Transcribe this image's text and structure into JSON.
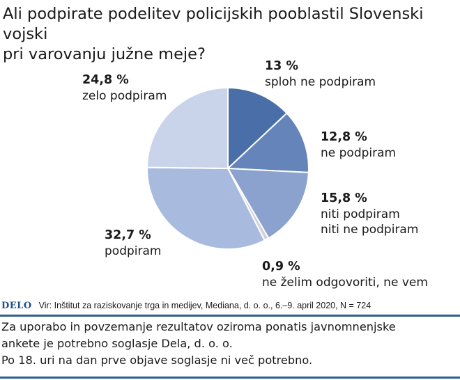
{
  "title_lines": [
    "Ali podpirate podelitev policijskih pooblastil Slovenski vojski",
    "pri varovanju južne meje?"
  ],
  "chart_data": {
    "type": "pie",
    "title": "Ali podpirate podelitev policijskih pooblastil Slovenski vojski pri varovanju južne meje?",
    "unit": "%",
    "slices": [
      {
        "pct_label": "13 %",
        "label_lines": [
          "sploh ne podpiram"
        ],
        "value": 13.0,
        "color": "#4a6fa8"
      },
      {
        "pct_label": "12,8 %",
        "label_lines": [
          "ne podpiram"
        ],
        "value": 12.8,
        "color": "#6585ba"
      },
      {
        "pct_label": "15,8 %",
        "label_lines": [
          "niti podpiram",
          "niti ne podpiram"
        ],
        "value": 15.8,
        "color": "#8aa2cd"
      },
      {
        "pct_label": "0,9 %",
        "label_lines": [
          "ne želim odgovoriti, ne vem"
        ],
        "value": 0.9,
        "color": "#d0d2d6"
      },
      {
        "pct_label": "32,7 %",
        "label_lines": [
          "podpiram"
        ],
        "value": 32.7,
        "color": "#a8bbdf"
      },
      {
        "pct_label": "24,8 %",
        "label_lines": [
          "zelo podpiram"
        ],
        "value": 24.8,
        "color": "#c9d4ea"
      }
    ]
  },
  "footer": {
    "logo": "DELO",
    "source": "Vir: Inštitut za raziskovanje trga in medijev, Mediana, d. o. o., 6.–9. april 2020, N = 724"
  },
  "notice_lines": [
    "Za uporabo in povzemanje rezultatov oziroma ponatis javnomnenjske",
    "ankete je potrebno soglasje Dela, d. o. o.",
    "Po 18. uri na dan prve objave soglasje ni več potrebno."
  ]
}
